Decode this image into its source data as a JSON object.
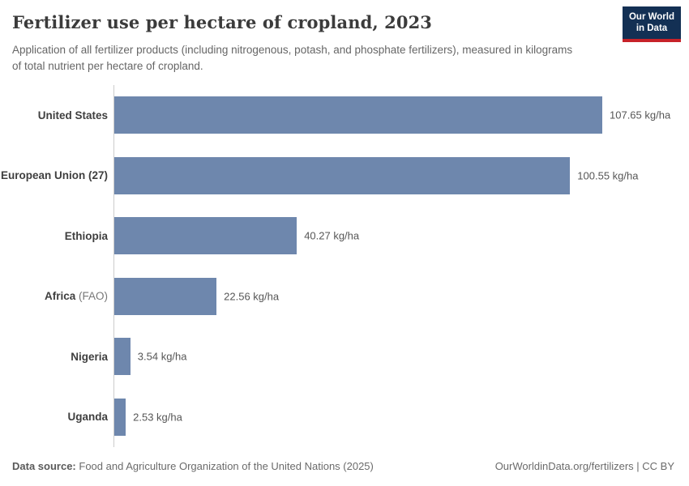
{
  "header": {
    "title": "Fertilizer use per hectare of cropland, 2023",
    "subtitle": "Application of all fertilizer products (including nitrogenous, potash, and phosphate fertilizers), measured in kilograms of total nutrient per hectare of cropland.",
    "logo": {
      "line1": "Our World",
      "line2": "in Data"
    }
  },
  "chart_data": {
    "type": "bar",
    "orientation": "horizontal",
    "title": "Fertilizer use per hectare of cropland, 2023",
    "unit": "kg/ha",
    "categories": [
      {
        "name": "United States",
        "suffix": ""
      },
      {
        "name": "European Union (27)",
        "suffix": ""
      },
      {
        "name": "Ethiopia",
        "suffix": ""
      },
      {
        "name": "Africa",
        "suffix": "(FAO)"
      },
      {
        "name": "Nigeria",
        "suffix": ""
      },
      {
        "name": "Uganda",
        "suffix": ""
      }
    ],
    "values": [
      107.65,
      100.55,
      40.27,
      22.56,
      3.54,
      2.53
    ],
    "value_labels": [
      "107.65 kg/ha",
      "100.55 kg/ha",
      "40.27 kg/ha",
      "22.56 kg/ha",
      "3.54 kg/ha",
      "2.53 kg/ha"
    ],
    "xlim": [
      0,
      107.65
    ],
    "grid": false,
    "legend": "none"
  },
  "colors": {
    "bar": "#6e87ad",
    "axis_line": "#cccccc",
    "logo_navy": "#133054",
    "logo_red": "#c72229"
  },
  "footer": {
    "datasource_label": "Data source:",
    "datasource_value": "Food and Agriculture Organization of the United Nations (2025)",
    "credit": "OurWorldinData.org/fertilizers | CC BY"
  }
}
